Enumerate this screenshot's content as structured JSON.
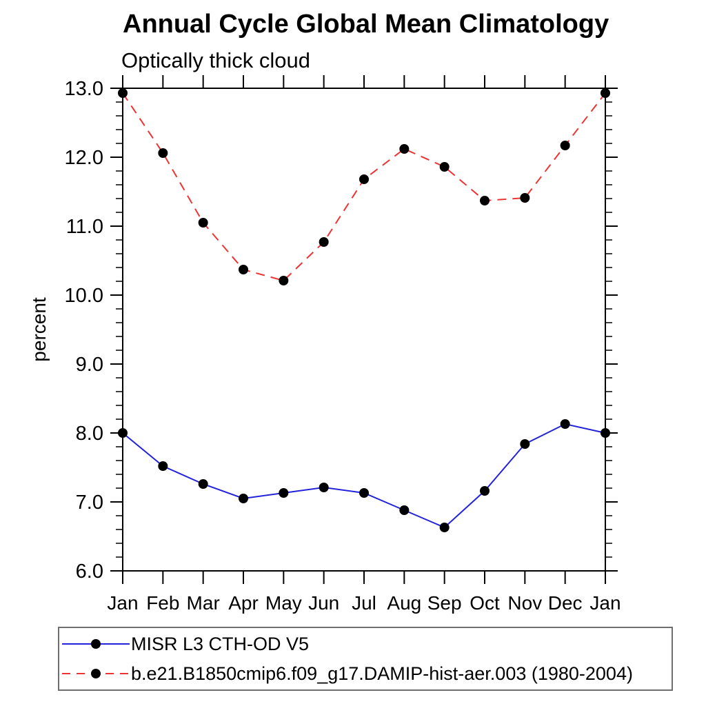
{
  "title": "Annual Cycle Global Mean Climatology",
  "subtitle": "Optically thick cloud",
  "ylabel": "percent",
  "chart_data": {
    "type": "line",
    "categories": [
      "Jan",
      "Feb",
      "Mar",
      "Apr",
      "May",
      "Jun",
      "Jul",
      "Aug",
      "Sep",
      "Oct",
      "Nov",
      "Dec",
      "Jan"
    ],
    "series": [
      {
        "name": "MISR L3 CTH-OD V5",
        "line_style": "solid",
        "line_color": "#2222dd",
        "marker": "circle",
        "marker_color": "#000000",
        "values": [
          8.0,
          7.52,
          7.26,
          7.05,
          7.13,
          7.21,
          7.13,
          6.88,
          6.63,
          7.16,
          7.84,
          8.13,
          8.0
        ]
      },
      {
        "name": "b.e21.B1850cmip6.f09_g17.DAMIP-hist-aer.003 (1980-2004)",
        "line_style": "dashed",
        "line_color": "#ee3333",
        "marker": "circle",
        "marker_color": "#000000",
        "values": [
          12.93,
          12.06,
          11.05,
          10.37,
          10.21,
          10.77,
          11.68,
          12.12,
          11.86,
          11.37,
          11.41,
          12.17,
          12.93
        ]
      }
    ],
    "ylim": [
      6.0,
      13.0
    ],
    "ytick_step": 1.0,
    "yminor_step": 0.2,
    "ytick_labels": [
      "6.0",
      "7.0",
      "8.0",
      "9.0",
      "10.0",
      "11.0",
      "12.0",
      "13.0"
    ],
    "xlabel": "",
    "grid": false,
    "axis_color": "#000000",
    "legend_position": "bottom-left"
  }
}
